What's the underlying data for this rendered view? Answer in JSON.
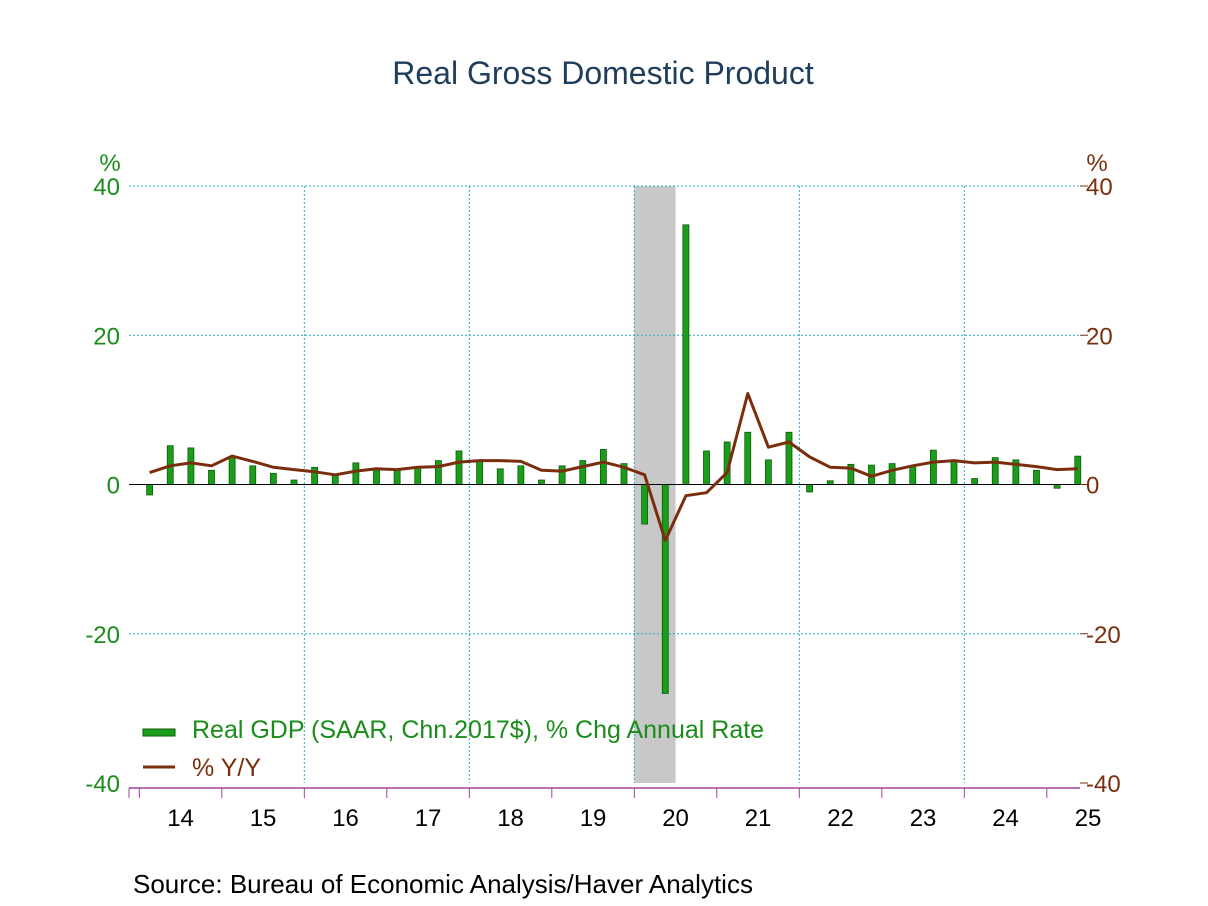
{
  "chart_data": {
    "type": "bar",
    "title": "Real Gross Domestic Product",
    "source": "Source:  Bureau of Economic Analysis/Haver Analytics",
    "left_axis_unit": "%",
    "right_axis_unit": "%",
    "ylim": [
      -40,
      40
    ],
    "y_ticks": [
      40,
      20,
      0,
      -20,
      -40
    ],
    "y_tick_labels": [
      "40",
      "20",
      "0",
      "-20",
      "-40"
    ],
    "x_tick_labels": [
      "14",
      "15",
      "16",
      "17",
      "18",
      "19",
      "20",
      "21",
      "22",
      "23",
      "24",
      "25"
    ],
    "grid": true,
    "legend_position": "bottom-left",
    "recession": {
      "start": "2020 Q1",
      "end": "2020 Q2"
    },
    "categories": [
      "2014 Q1",
      "2014 Q2",
      "2014 Q3",
      "2014 Q4",
      "2015 Q1",
      "2015 Q2",
      "2015 Q3",
      "2015 Q4",
      "2016 Q1",
      "2016 Q2",
      "2016 Q3",
      "2016 Q4",
      "2017 Q1",
      "2017 Q2",
      "2017 Q3",
      "2017 Q4",
      "2018 Q1",
      "2018 Q2",
      "2018 Q3",
      "2018 Q4",
      "2019 Q1",
      "2019 Q2",
      "2019 Q3",
      "2019 Q4",
      "2020 Q1",
      "2020 Q2",
      "2020 Q3",
      "2020 Q4",
      "2021 Q1",
      "2021 Q2",
      "2021 Q3",
      "2021 Q4",
      "2022 Q1",
      "2022 Q2",
      "2022 Q3",
      "2022 Q4",
      "2023 Q1",
      "2023 Q2",
      "2023 Q3",
      "2023 Q4",
      "2024 Q1",
      "2024 Q2",
      "2024 Q3",
      "2024 Q4",
      "2025 Q1",
      "2025 Q2"
    ],
    "series": [
      {
        "name": "Real GDP (SAAR, Chn.2017$), % Chg Annual Rate",
        "type": "bar",
        "color": "#1a9e1a",
        "values": [
          -1.4,
          5.2,
          4.9,
          1.9,
          3.8,
          2.5,
          1.5,
          0.6,
          2.3,
          1.3,
          2.9,
          2.2,
          2.0,
          2.3,
          3.2,
          4.5,
          3.3,
          2.1,
          2.5,
          0.6,
          2.5,
          3.2,
          4.7,
          2.8,
          -5.3,
          -28.0,
          34.8,
          4.5,
          5.7,
          7.0,
          3.3,
          7.0,
          -1.0,
          0.5,
          2.7,
          2.6,
          2.8,
          2.4,
          4.6,
          3.2,
          0.8,
          3.6,
          3.3,
          1.9,
          -0.5,
          3.8
        ]
      },
      {
        "name": "% Y/Y",
        "type": "line",
        "color": "#7a2e0e",
        "values": [
          1.6,
          2.5,
          2.9,
          2.5,
          3.8,
          3.1,
          2.3,
          2.0,
          1.7,
          1.3,
          1.8,
          2.1,
          2.0,
          2.3,
          2.4,
          3.0,
          3.2,
          3.2,
          3.1,
          1.9,
          1.8,
          2.4,
          3.0,
          2.3,
          1.3,
          -7.5,
          -1.5,
          -1.1,
          1.6,
          12.2,
          5.0,
          5.7,
          3.7,
          2.3,
          2.2,
          1.1,
          1.9,
          2.5,
          3.0,
          3.2,
          2.9,
          3.0,
          2.7,
          2.4,
          2.0,
          2.1
        ]
      }
    ]
  },
  "colors": {
    "title": "#1f3d5c",
    "left_axis": "#1a8c1a",
    "right_axis": "#7a2e0e",
    "grid": "#29a8c9",
    "recession": "#c8c8c8",
    "x_axis": "#a040a0",
    "bar_fill": "#1a9e1a",
    "bar_edge": "#0d5a0d",
    "line": "#7a2e0e"
  }
}
